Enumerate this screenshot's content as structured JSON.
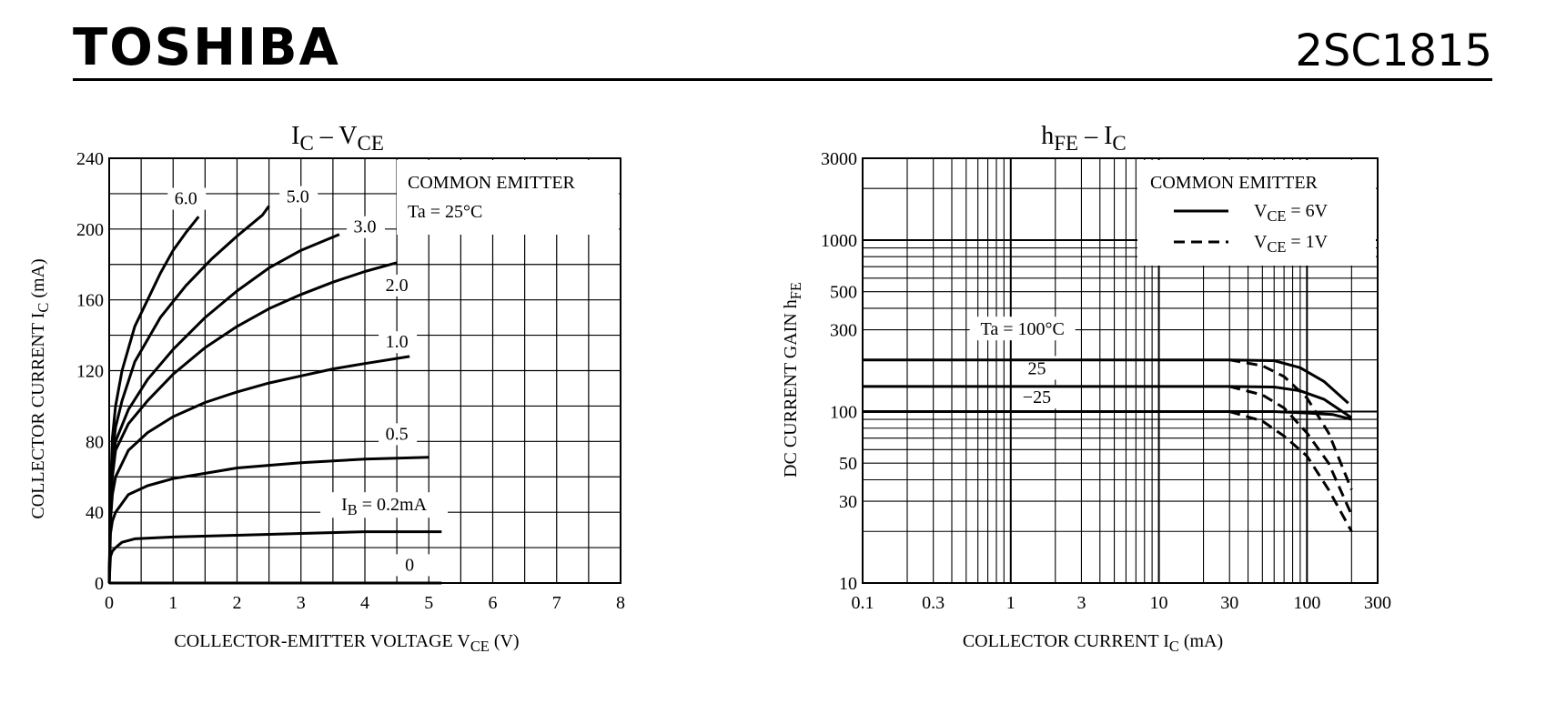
{
  "header": {
    "brand": "TOSHIBA",
    "part_number": "2SC1815"
  },
  "chart_data": [
    {
      "type": "line",
      "title": {
        "main": "I",
        "sub": "C",
        "dash": " – ",
        "main2": "V",
        "sub2": "CE"
      },
      "xlabel": {
        "text": "COLLECTOR-EMITTER VOLTAGE   V",
        "sub": "CE",
        "unit": "  (V)"
      },
      "ylabel": {
        "text": "COLLECTOR CURRENT   I",
        "sub": "C",
        "unit": "  (mA)"
      },
      "xlim": [
        0,
        8
      ],
      "ylim": [
        0,
        240
      ],
      "xticks": [
        "0",
        "1",
        "2",
        "3",
        "4",
        "5",
        "6",
        "7",
        "8"
      ],
      "yticks": [
        "0",
        "40",
        "80",
        "120",
        "160",
        "200",
        "240"
      ],
      "grid": true,
      "legend": {
        "lines": [
          "COMMON EMITTER",
          "Ta = 25°C"
        ]
      },
      "series": [
        {
          "name": "6.0",
          "x": [
            0,
            0.02,
            0.05,
            0.1,
            0.2,
            0.4,
            0.6,
            0.8,
            1.0,
            1.2,
            1.4
          ],
          "y": [
            0,
            50,
            82,
            100,
            120,
            145,
            160,
            175,
            188,
            198,
            207
          ]
        },
        {
          "name": "5.0",
          "x": [
            0,
            0.02,
            0.05,
            0.1,
            0.2,
            0.4,
            0.8,
            1.2,
            1.6,
            2.0,
            2.4,
            2.5
          ],
          "y": [
            0,
            45,
            72,
            88,
            103,
            125,
            150,
            168,
            183,
            196,
            208,
            213
          ]
        },
        {
          "name": "3.0",
          "x": [
            0,
            0.02,
            0.05,
            0.1,
            0.3,
            0.6,
            1.0,
            1.5,
            2.0,
            2.5,
            3.0,
            3.6
          ],
          "y": [
            0,
            40,
            65,
            80,
            98,
            115,
            132,
            150,
            165,
            178,
            188,
            197
          ]
        },
        {
          "name": "2.0",
          "x": [
            0,
            0.02,
            0.05,
            0.1,
            0.3,
            0.6,
            1.0,
            1.5,
            2.0,
            2.5,
            3.0,
            3.5,
            4.0,
            4.5
          ],
          "y": [
            0,
            38,
            60,
            75,
            90,
            103,
            118,
            133,
            145,
            155,
            163,
            170,
            176,
            181
          ]
        },
        {
          "name": "1.0",
          "x": [
            0,
            0.02,
            0.05,
            0.1,
            0.3,
            0.6,
            1.0,
            1.5,
            2.0,
            2.5,
            3.0,
            3.5,
            4.0,
            4.7
          ],
          "y": [
            0,
            35,
            50,
            60,
            75,
            85,
            94,
            102,
            108,
            113,
            117,
            121,
            124,
            128
          ]
        },
        {
          "name": "0.5",
          "x": [
            0,
            0.02,
            0.05,
            0.1,
            0.3,
            0.6,
            1.0,
            1.5,
            2.0,
            3.0,
            4.0,
            5.0
          ],
          "y": [
            0,
            28,
            35,
            40,
            50,
            55,
            59,
            62,
            65,
            68,
            70,
            71
          ]
        },
        {
          "name": "I_B = 0.2mA",
          "x": [
            0,
            0.02,
            0.05,
            0.1,
            0.2,
            0.4,
            1.0,
            2.0,
            3.0,
            4.0,
            5.2
          ],
          "y": [
            0,
            15,
            18,
            20,
            23,
            25,
            26,
            27,
            28,
            29,
            29
          ]
        },
        {
          "name": "0",
          "x": [
            0,
            5.2
          ],
          "y": [
            0,
            0
          ]
        }
      ],
      "curve_labels": [
        {
          "text": "6.0",
          "x": 1.2,
          "y": 214
        },
        {
          "text": "5.0",
          "x": 2.95,
          "y": 215
        },
        {
          "text": "3.0",
          "x": 4.0,
          "y": 198
        },
        {
          "text": "2.0",
          "x": 4.5,
          "y": 165
        },
        {
          "text": "1.0",
          "x": 4.5,
          "y": 133
        },
        {
          "text": "0.5",
          "x": 4.5,
          "y": 81
        },
        {
          "text": "0",
          "x": 4.7,
          "y": 7
        }
      ],
      "ib_label": {
        "prefix": "I",
        "sub": "B",
        "text": " = 0.2mA",
        "x": 4.3,
        "y": 41
      }
    },
    {
      "type": "line",
      "title": {
        "main": "h",
        "sub": "FE",
        "dash": " – ",
        "main2": "I",
        "sub2": "C"
      },
      "xlabel": {
        "text": "COLLECTOR CURRENT   I",
        "sub": "C",
        "unit": "  (mA)"
      },
      "ylabel": {
        "text": "DC CURRENT GAIN   h",
        "sub": "FE",
        "unit": ""
      },
      "xscale": "log",
      "yscale": "log",
      "xlim": [
        0.1,
        300
      ],
      "ylim": [
        10,
        3000
      ],
      "xticks": [
        "0.1",
        "0.3",
        "1",
        "3",
        "10",
        "30",
        "100",
        "300"
      ],
      "yticks": [
        "10",
        "30",
        "50",
        "100",
        "300",
        "500",
        "1000",
        "3000"
      ],
      "grid": true,
      "legend": {
        "title": "COMMON EMITTER",
        "entries": [
          {
            "prefix": "V",
            "sub": "CE",
            "text": " = 6V",
            "style": "solid"
          },
          {
            "prefix": "V",
            "sub": "CE",
            "text": " = 1V",
            "style": "dashed"
          }
        ]
      },
      "series": [
        {
          "name": "Ta=100°C VCE=6V",
          "style": "solid",
          "x": [
            0.1,
            30,
            60,
            90,
            130,
            190
          ],
          "y": [
            200,
            200,
            198,
            180,
            150,
            112
          ]
        },
        {
          "name": "25 VCE=6V",
          "style": "solid",
          "x": [
            0.1,
            30,
            60,
            90,
            130,
            200
          ],
          "y": [
            140,
            140,
            139,
            132,
            118,
            92
          ]
        },
        {
          "name": "-25 VCE=6V",
          "style": "solid",
          "x": [
            0.1,
            30,
            60,
            100,
            150,
            200
          ],
          "y": [
            100,
            100,
            100,
            98,
            96,
            90
          ]
        },
        {
          "name": "Ta=100°C VCE=1V",
          "style": "dashed",
          "x": [
            30,
            50,
            70,
            100,
            140,
            200
          ],
          "y": [
            200,
            185,
            160,
            120,
            75,
            35
          ]
        },
        {
          "name": "25 VCE=1V",
          "style": "dashed",
          "x": [
            30,
            50,
            70,
            100,
            140,
            200
          ],
          "y": [
            140,
            125,
            105,
            75,
            50,
            25
          ]
        },
        {
          "name": "-25 VCE=1V",
          "style": "dashed",
          "x": [
            30,
            50,
            70,
            100,
            140,
            200
          ],
          "y": [
            100,
            88,
            72,
            55,
            35,
            20
          ]
        }
      ],
      "curve_labels": [
        {
          "text": "Ta = 100°C",
          "x": 1.2,
          "y": 280
        },
        {
          "text": "25",
          "x": 1.5,
          "y": 165
        },
        {
          "text": "−25",
          "x": 1.5,
          "y": 112
        }
      ]
    }
  ]
}
